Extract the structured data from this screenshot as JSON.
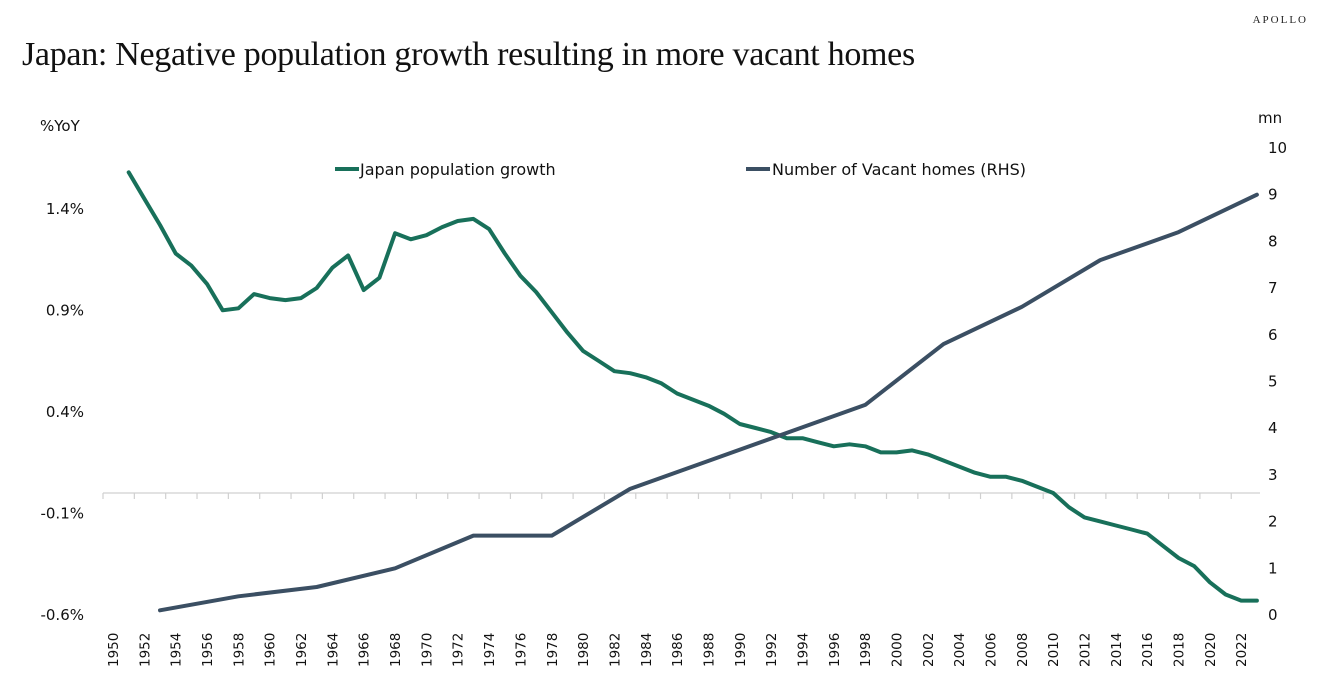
{
  "header": {
    "logo": "APOLLO",
    "title": "Japan: Negative population growth resulting in more vacant homes"
  },
  "colors": {
    "population": "#18705a",
    "vacant": "#3b4f63",
    "zero_line": "#d0d0d0"
  },
  "chart_data": {
    "type": "line",
    "title": "Japan: Negative population growth resulting in more vacant homes",
    "xlabel": "",
    "ylabel_left": "%YoY",
    "ylabel_right": "mn",
    "ylim_left": [
      -0.6,
      1.9
    ],
    "ylim_right": [
      0,
      10
    ],
    "left_ticks": [
      "1.4%",
      "0.9%",
      "0.4%",
      "-0.1%",
      "-0.6%"
    ],
    "left_tick_values": [
      1.4,
      0.9,
      0.4,
      -0.1,
      -0.6
    ],
    "right_ticks": [
      "10",
      "9",
      "8",
      "7",
      "6",
      "5",
      "4",
      "3",
      "2",
      "1",
      "0"
    ],
    "right_tick_values": [
      10,
      9,
      8,
      7,
      6,
      5,
      4,
      3,
      2,
      1,
      0
    ],
    "x_ticks": [
      "1950",
      "1952",
      "1954",
      "1956",
      "1958",
      "1960",
      "1962",
      "1964",
      "1966",
      "1968",
      "1970",
      "1972",
      "1974",
      "1976",
      "1978",
      "1980",
      "1982",
      "1984",
      "1986",
      "1988",
      "1990",
      "1992",
      "1994",
      "1996",
      "1998",
      "2000",
      "2002",
      "2004",
      "2006",
      "2008",
      "2010",
      "2012",
      "2014",
      "2016",
      "2018",
      "2020",
      "2022"
    ],
    "x_tick_values": [
      1950,
      1952,
      1954,
      1956,
      1958,
      1960,
      1962,
      1964,
      1966,
      1968,
      1970,
      1972,
      1974,
      1976,
      1978,
      1980,
      1982,
      1984,
      1986,
      1988,
      1990,
      1992,
      1994,
      1996,
      1998,
      2000,
      2002,
      2004,
      2006,
      2008,
      2010,
      2012,
      2014,
      2016,
      2018,
      2020,
      2022
    ],
    "legend_position": "top",
    "grid": false,
    "series": [
      {
        "name": "Japan population growth",
        "axis": "left",
        "x": [
          1951,
          1952,
          1953,
          1954,
          1955,
          1956,
          1957,
          1958,
          1959,
          1960,
          1961,
          1962,
          1963,
          1964,
          1965,
          1966,
          1967,
          1968,
          1969,
          1970,
          1971,
          1972,
          1973,
          1974,
          1975,
          1976,
          1977,
          1978,
          1979,
          1980,
          1981,
          1982,
          1983,
          1984,
          1985,
          1986,
          1987,
          1988,
          1989,
          1990,
          1991,
          1992,
          1993,
          1994,
          1995,
          1996,
          1997,
          1998,
          1999,
          2000,
          2001,
          2002,
          2003,
          2004,
          2005,
          2006,
          2007,
          2008,
          2009,
          2010,
          2011,
          2012,
          2013,
          2014,
          2015,
          2016,
          2017,
          2018,
          2019,
          2020,
          2021,
          2022,
          2023
        ],
        "values": [
          1.58,
          1.45,
          1.32,
          1.18,
          1.12,
          1.03,
          0.9,
          0.91,
          0.98,
          0.96,
          0.95,
          0.96,
          1.01,
          1.11,
          1.17,
          1.0,
          1.06,
          1.28,
          1.25,
          1.27,
          1.31,
          1.34,
          1.35,
          1.3,
          1.18,
          1.07,
          0.99,
          0.89,
          0.79,
          0.7,
          0.65,
          0.6,
          0.59,
          0.57,
          0.54,
          0.49,
          0.46,
          0.43,
          0.39,
          0.34,
          0.32,
          0.3,
          0.27,
          0.27,
          0.25,
          0.23,
          0.24,
          0.23,
          0.2,
          0.2,
          0.21,
          0.19,
          0.16,
          0.13,
          0.1,
          0.08,
          0.08,
          0.06,
          0.03,
          0.0,
          -0.07,
          -0.12,
          -0.14,
          -0.16,
          -0.18,
          -0.2,
          -0.26,
          -0.32,
          -0.36,
          -0.44,
          -0.5,
          -0.53,
          -0.53
        ]
      },
      {
        "name": "Number of Vacant homes (RHS)",
        "axis": "right",
        "x": [
          1953,
          1958,
          1963,
          1968,
          1973,
          1978,
          1983,
          1988,
          1993,
          1998,
          2003,
          2008,
          2013,
          2018,
          2023
        ],
        "values": [
          0.1,
          0.4,
          0.6,
          1.0,
          1.7,
          1.7,
          2.7,
          3.3,
          3.9,
          4.5,
          5.8,
          6.6,
          7.6,
          8.2,
          9.0
        ]
      }
    ]
  }
}
